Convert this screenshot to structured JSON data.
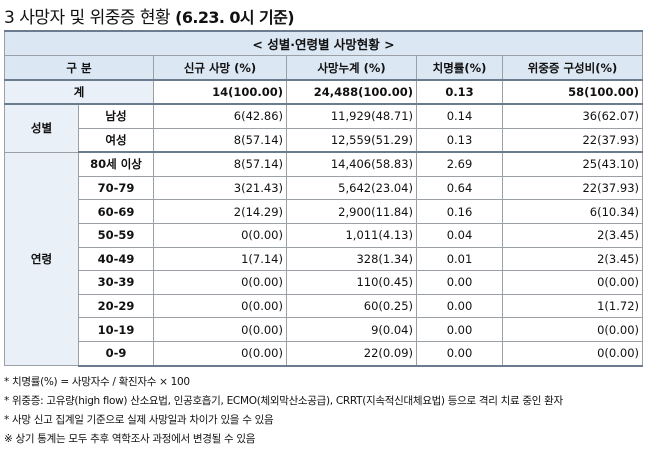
{
  "title": {
    "prefix": "3 사망자 및 위중증 현황",
    "suffix": "(6.23. 0시 기준)"
  },
  "table": {
    "caption": "< 성별·연령별 사망현황 >",
    "headers": [
      "구 분",
      "신규 사망 (%)",
      "사망누계 (%)",
      "치명률(%)",
      "위중증 구성비(%)"
    ],
    "total": {
      "label": "계",
      "new_deaths": "14(100.00)",
      "cumulative": "24,488(100.00)",
      "cfr": "0.13",
      "critical": "58(100.00)"
    },
    "sex_label": "성별",
    "sex_rows": [
      {
        "group": "남성",
        "new_deaths": "6(42.86)",
        "cumulative": "11,929(48.71)",
        "cfr": "0.14",
        "critical": "36(62.07)"
      },
      {
        "group": "여성",
        "new_deaths": "8(57.14)",
        "cumulative": "12,559(51.29)",
        "cfr": "0.13",
        "critical": "22(37.93)"
      }
    ],
    "age_label": "연령",
    "age_rows": [
      {
        "group": "80세 이상",
        "new_deaths": "8(57.14)",
        "cumulative": "14,406(58.83)",
        "cfr": "2.69",
        "critical": "25(43.10)"
      },
      {
        "group": "70-79",
        "new_deaths": "3(21.43)",
        "cumulative": "5,642(23.04)",
        "cfr": "0.64",
        "critical": "22(37.93)"
      },
      {
        "group": "60-69",
        "new_deaths": "2(14.29)",
        "cumulative": "2,900(11.84)",
        "cfr": "0.16",
        "critical": "6(10.34)"
      },
      {
        "group": "50-59",
        "new_deaths": "0(0.00)",
        "cumulative": "1,011(4.13)",
        "cfr": "0.04",
        "critical": "2(3.45)"
      },
      {
        "group": "40-49",
        "new_deaths": "1(7.14)",
        "cumulative": "328(1.34)",
        "cfr": "0.01",
        "critical": "2(3.45)"
      },
      {
        "group": "30-39",
        "new_deaths": "0(0.00)",
        "cumulative": "110(0.45)",
        "cfr": "0.00",
        "critical": "0(0.00)"
      },
      {
        "group": "20-29",
        "new_deaths": "0(0.00)",
        "cumulative": "60(0.25)",
        "cfr": "0.00",
        "critical": "1(1.72)"
      },
      {
        "group": "10-19",
        "new_deaths": "0(0.00)",
        "cumulative": "9(0.04)",
        "cfr": "0.00",
        "critical": "0(0.00)"
      },
      {
        "group": "0-9",
        "new_deaths": "0(0.00)",
        "cumulative": "22(0.09)",
        "cfr": "0.00",
        "critical": "0(0.00)"
      }
    ]
  },
  "notes": [
    "* 치명률(%) = 사망자수 / 확진자수 × 100",
    "* 위중증: 고유량(high flow) 산소요법, 인공호흡기, ECMO(체외막산소공급), CRRT(지속적신대체요법) 등으로 격리 치료 중인 환자",
    "* 사망 신고 집계일 기준으로 실제 사망일과 차이가 있을 수 있음",
    "※ 상기 통계는 모두 추후 역학조사 과정에서 변경될 수 있음"
  ]
}
